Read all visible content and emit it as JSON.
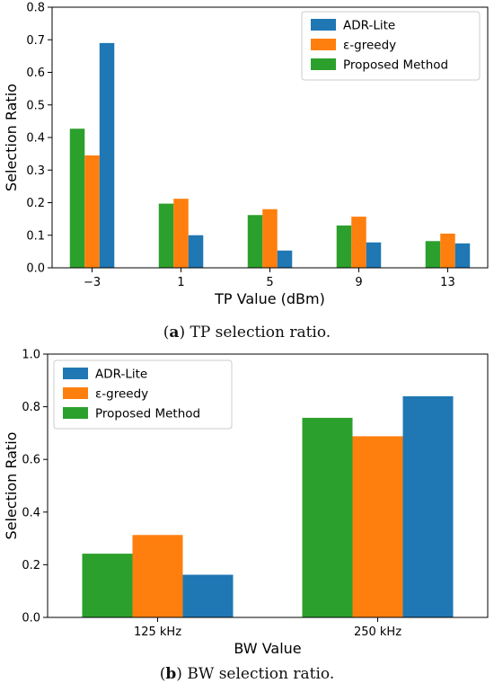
{
  "colors": {
    "adr_lite": "#1f77b4",
    "epsilon_greedy": "#ff7f0e",
    "proposed": "#2ca02c"
  },
  "captions": {
    "a_label": "a",
    "a_text": "TP selection ratio.",
    "b_label": "b",
    "b_text": "BW selection ratio."
  },
  "chart_data": [
    {
      "type": "bar",
      "xlabel": "TP Value (dBm)",
      "ylabel": "Selection Ratio",
      "ylim": [
        0,
        0.8
      ],
      "yticks": [
        "0.0",
        "0.1",
        "0.2",
        "0.3",
        "0.4",
        "0.5",
        "0.6",
        "0.7",
        "0.8"
      ],
      "categories": [
        "−3",
        "1",
        "5",
        "9",
        "13"
      ],
      "legend_position": "top-right",
      "grid": false,
      "series": [
        {
          "name": "ADR-Lite",
          "color_key": "adr_lite",
          "values": [
            0.69,
            0.1,
            0.053,
            0.078,
            0.075
          ]
        },
        {
          "name": "ε-greedy",
          "color_key": "epsilon_greedy",
          "values": [
            0.345,
            0.212,
            0.18,
            0.157,
            0.105
          ]
        },
        {
          "name": "Proposed Method",
          "color_key": "proposed",
          "values": [
            0.427,
            0.197,
            0.162,
            0.13,
            0.082
          ]
        }
      ]
    },
    {
      "type": "bar",
      "xlabel": "BW Value",
      "ylabel": "Selection Ratio",
      "ylim": [
        0,
        1.0
      ],
      "yticks": [
        "0.0",
        "0.2",
        "0.4",
        "0.6",
        "0.8",
        "1.0"
      ],
      "categories": [
        "125 kHz",
        "250 kHz"
      ],
      "legend_position": "top-left",
      "grid": false,
      "series": [
        {
          "name": "ADR-Lite",
          "color_key": "adr_lite",
          "values": [
            0.162,
            0.84
          ]
        },
        {
          "name": "ε-greedy",
          "color_key": "epsilon_greedy",
          "values": [
            0.313,
            0.688
          ]
        },
        {
          "name": "Proposed Method",
          "color_key": "proposed",
          "values": [
            0.242,
            0.758
          ]
        }
      ]
    }
  ]
}
